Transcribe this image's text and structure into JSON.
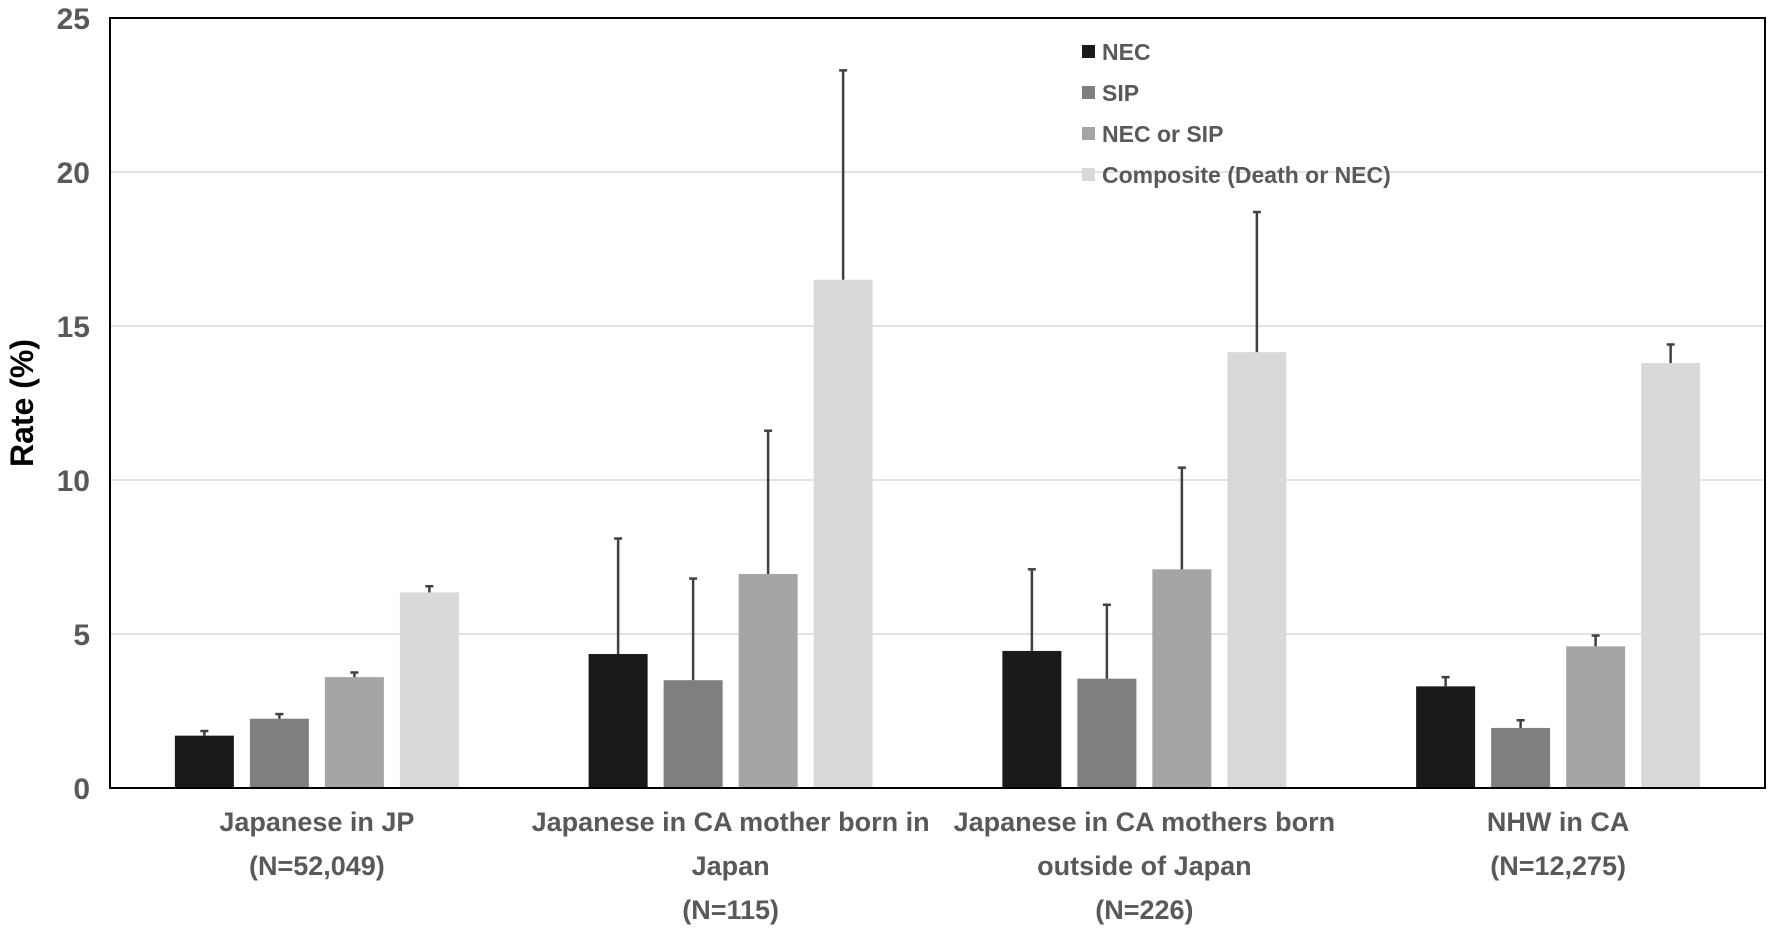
{
  "chart_data": {
    "type": "bar",
    "title": "",
    "xlabel": "",
    "ylabel": "Rate (%)",
    "ylim": [
      0,
      25
    ],
    "yticks": [
      0,
      5,
      10,
      15,
      20,
      25
    ],
    "grid": true,
    "legend_position": "top-right",
    "categories": [
      {
        "lines": [
          "Japanese in JP",
          "(N=52,049)"
        ]
      },
      {
        "lines": [
          "Japanese in CA mother born in",
          "Japan",
          "(N=115)"
        ]
      },
      {
        "lines": [
          "Japanese in CA mothers born",
          "outside of Japan",
          "(N=226)"
        ]
      },
      {
        "lines": [
          "NHW in CA",
          "(N=12,275)"
        ]
      }
    ],
    "series": [
      {
        "name": "NEC",
        "color": "#1a1a1a",
        "values": [
          1.7,
          4.35,
          4.45,
          3.3
        ],
        "error_upper": [
          1.85,
          8.1,
          7.1,
          3.6
        ]
      },
      {
        "name": "SIP",
        "color": "#7f7f7f",
        "values": [
          2.25,
          3.5,
          3.55,
          1.95
        ],
        "error_upper": [
          2.4,
          6.8,
          5.95,
          2.2
        ]
      },
      {
        "name": "NEC or SIP",
        "color": "#a5a5a5",
        "values": [
          3.6,
          6.95,
          7.1,
          4.6
        ],
        "error_upper": [
          3.75,
          11.6,
          10.4,
          4.95
        ]
      },
      {
        "name": "Composite (Death or NEC)",
        "color": "#d9d9d9",
        "values": [
          6.35,
          16.5,
          14.15,
          13.8
        ],
        "error_upper": [
          6.55,
          23.3,
          18.7,
          14.4
        ]
      }
    ]
  }
}
